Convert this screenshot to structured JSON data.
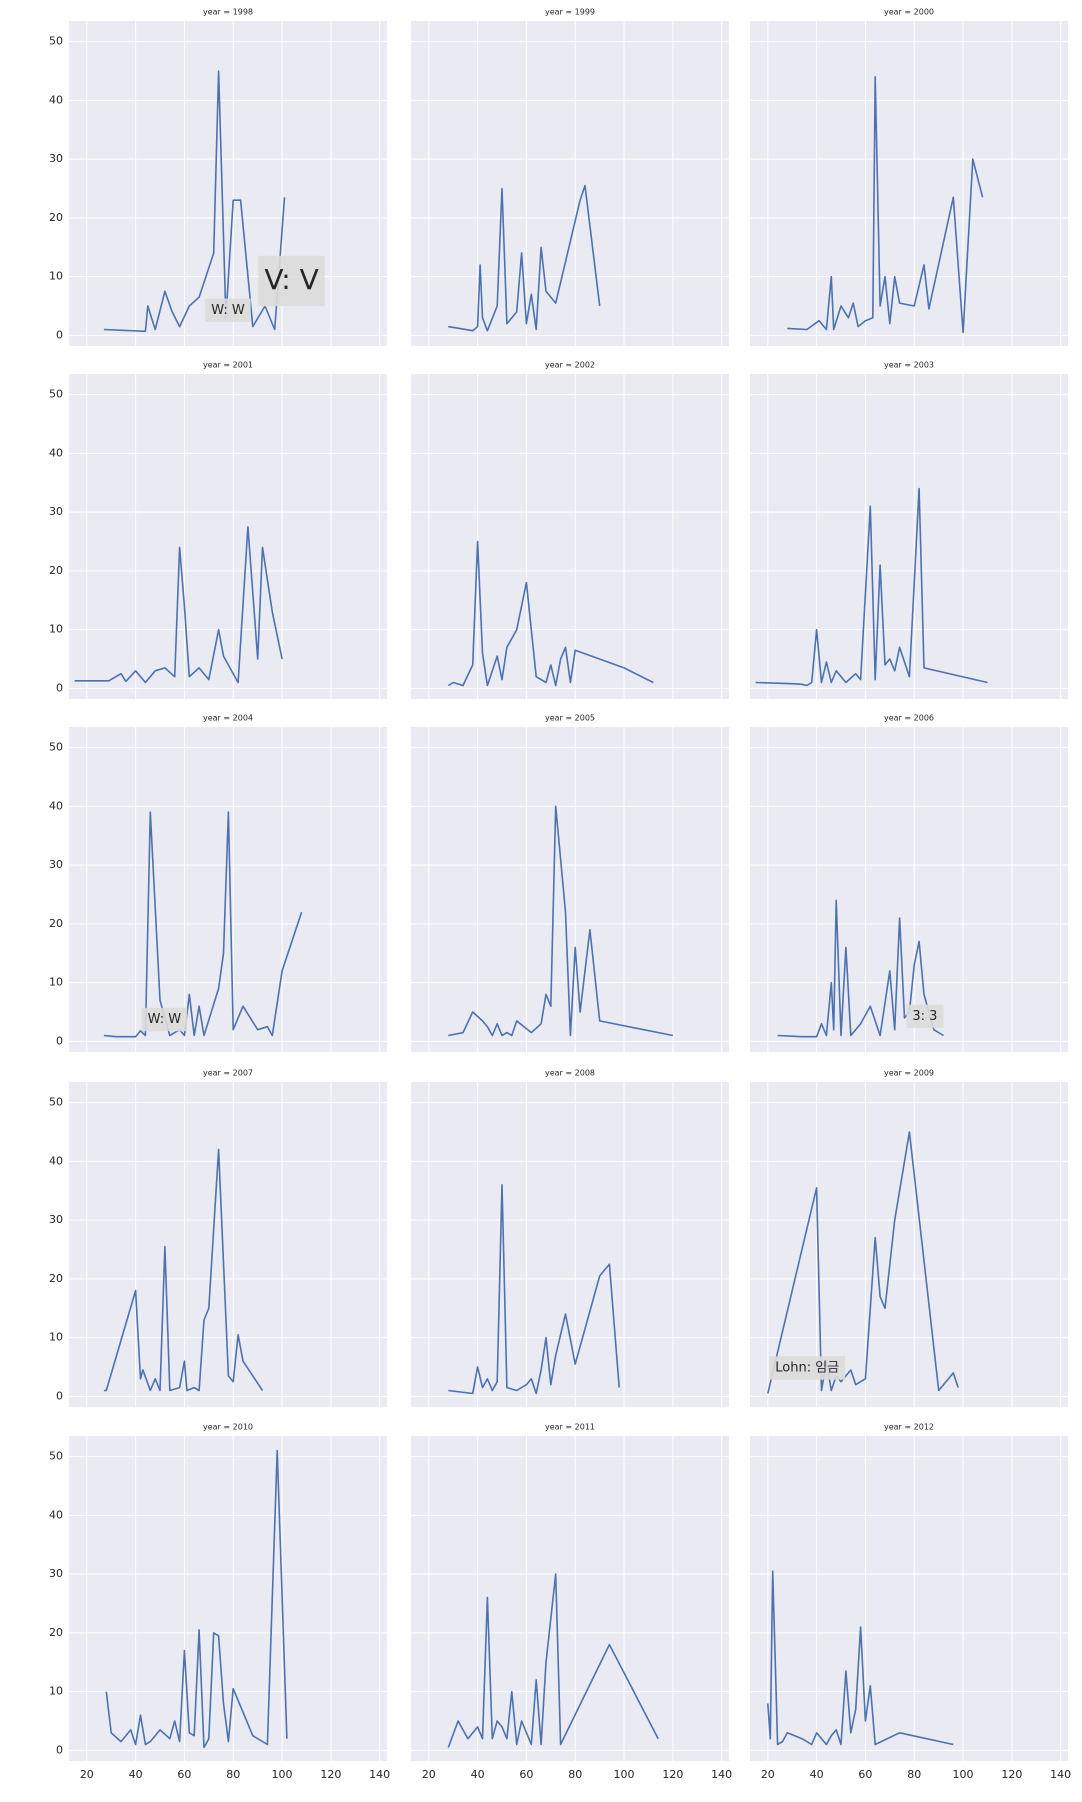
{
  "shared_axes": {
    "xlim": [
      12.7,
      143
    ],
    "xticks": [
      20,
      40,
      60,
      80,
      100,
      120,
      140
    ],
    "ylim": [
      -1.8,
      53.5
    ],
    "yticks": [
      0,
      10,
      20,
      30,
      40,
      50
    ],
    "color": "#4c72b0",
    "grid": true
  },
  "chart_data": [
    {
      "type": "line",
      "title": "year = 1998",
      "x": [
        27,
        44,
        45,
        48,
        52,
        55,
        58,
        62,
        66,
        72,
        74,
        77,
        80,
        83,
        88,
        93,
        97,
        101
      ],
      "values": [
        1,
        0.7,
        5,
        1,
        7.5,
        4,
        1.5,
        5,
        6.5,
        14,
        45,
        3,
        23,
        23,
        1.5,
        5,
        1,
        23.5
      ],
      "annotations": [
        "W: W",
        "V: V"
      ]
    },
    {
      "type": "line",
      "title": "year = 1999",
      "x": [
        28,
        38,
        40,
        41,
        42,
        44,
        48,
        50,
        52,
        56,
        58,
        60,
        62,
        64,
        66,
        68,
        72,
        82,
        84,
        90
      ],
      "values": [
        1.5,
        0.8,
        1.5,
        12,
        3,
        0.8,
        5,
        25,
        2,
        4,
        14,
        2,
        7,
        1,
        15,
        7.5,
        5.5,
        23,
        25.5,
        5
      ]
    },
    {
      "type": "line",
      "title": "year = 2000",
      "x": [
        28,
        36,
        41,
        44,
        46,
        47,
        50,
        53,
        55,
        57,
        60,
        63,
        64,
        66,
        68,
        70,
        72,
        74,
        80,
        84,
        86,
        96,
        100,
        104,
        108
      ],
      "values": [
        1.2,
        1,
        2.5,
        1,
        10,
        1,
        5,
        3,
        5.5,
        1.5,
        2.5,
        3,
        44,
        5,
        10,
        2,
        10,
        5.5,
        5,
        12,
        4.5,
        23.5,
        0.5,
        30,
        23.5
      ]
    },
    {
      "type": "line",
      "title": "year = 2001",
      "x": [
        15,
        29,
        34,
        36,
        40,
        44,
        48,
        52,
        56,
        58,
        60,
        62,
        66,
        70,
        74,
        76,
        82,
        86,
        90,
        92,
        96,
        100
      ],
      "values": [
        1.3,
        1.3,
        2.5,
        1.2,
        3,
        1,
        3,
        3.5,
        2,
        24,
        14,
        2,
        3.5,
        1.5,
        10,
        5.5,
        1,
        27.5,
        5,
        24,
        13,
        5
      ]
    },
    {
      "type": "line",
      "title": "year = 2002",
      "x": [
        28,
        30,
        34,
        38,
        40,
        42,
        44,
        48,
        50,
        52,
        56,
        60,
        64,
        68,
        70,
        72,
        74,
        76,
        78,
        80,
        100,
        112
      ],
      "values": [
        0.5,
        1,
        0.5,
        4,
        25,
        6,
        0.5,
        5.5,
        1.5,
        7,
        10,
        18,
        2,
        1,
        4,
        0.5,
        5,
        7,
        1,
        6.5,
        3.5,
        1
      ]
    },
    {
      "type": "line",
      "title": "year = 2003",
      "x": [
        15,
        30,
        34,
        36,
        38,
        40,
        42,
        44,
        46,
        48,
        52,
        56,
        58,
        62,
        64,
        66,
        68,
        70,
        72,
        74,
        78,
        82,
        84,
        110
      ],
      "values": [
        1,
        0.8,
        0.7,
        0.5,
        1,
        10,
        1,
        4.5,
        1,
        3,
        1,
        2.5,
        1.5,
        31,
        1.5,
        21,
        4,
        5,
        3,
        7,
        2,
        34,
        3.5,
        1
      ]
    },
    {
      "type": "line",
      "title": "year = 2004",
      "x": [
        27,
        32,
        40,
        42,
        44,
        46,
        50,
        52,
        54,
        58,
        60,
        62,
        64,
        66,
        68,
        74,
        76,
        78,
        80,
        84,
        90,
        94,
        96,
        100,
        108
      ],
      "values": [
        1,
        0.8,
        0.8,
        1.8,
        1,
        39,
        7,
        4,
        1,
        2,
        1,
        8,
        1,
        6,
        1,
        9,
        15,
        39,
        2,
        6,
        2,
        2.5,
        1,
        12,
        22
      ],
      "annotations": [
        "W: W"
      ]
    },
    {
      "type": "line",
      "title": "year = 2005",
      "x": [
        28,
        34,
        38,
        42,
        44,
        46,
        48,
        50,
        52,
        54,
        56,
        62,
        66,
        68,
        70,
        72,
        76,
        78,
        80,
        82,
        86,
        90,
        120
      ],
      "values": [
        1,
        1.5,
        5,
        3.5,
        2.5,
        1,
        3,
        1,
        1.5,
        1,
        3.5,
        1.5,
        3,
        8,
        6,
        40,
        22,
        1,
        16,
        5,
        19,
        3.5,
        1
      ]
    },
    {
      "type": "line",
      "title": "year = 2006",
      "x": [
        24,
        34,
        40,
        42,
        44,
        46,
        47,
        48,
        50,
        52,
        54,
        58,
        62,
        66,
        70,
        72,
        74,
        76,
        78,
        80,
        82,
        84,
        88,
        92
      ],
      "values": [
        1,
        0.8,
        0.8,
        3,
        1,
        10,
        2,
        24,
        1,
        16,
        1,
        3,
        6,
        1,
        12,
        2,
        21,
        4,
        5,
        13,
        17,
        8,
        2,
        1
      ],
      "annotations": [
        "3: 3"
      ]
    },
    {
      "type": "line",
      "title": "year = 2007",
      "x": [
        27,
        28,
        40,
        42,
        43,
        46,
        48,
        50,
        52,
        54,
        58,
        60,
        61,
        64,
        66,
        68,
        70,
        74,
        78,
        80,
        82,
        84,
        92
      ],
      "values": [
        1,
        1,
        18,
        3,
        4.5,
        1,
        3,
        1,
        25.5,
        1,
        1.5,
        6,
        1,
        1.5,
        1,
        13,
        15,
        42,
        3.5,
        2.5,
        10.5,
        6,
        1
      ]
    },
    {
      "type": "line",
      "title": "year = 2008",
      "x": [
        28,
        38,
        40,
        42,
        44,
        46,
        48,
        50,
        52,
        56,
        60,
        62,
        64,
        66,
        68,
        70,
        72,
        76,
        80,
        90,
        94,
        98
      ],
      "values": [
        1,
        0.5,
        5,
        1.5,
        3,
        1,
        2.5,
        36,
        1.5,
        1,
        2,
        3,
        0.5,
        4.5,
        10,
        2,
        7,
        14,
        5.5,
        20.5,
        22.5,
        1.5
      ]
    },
    {
      "type": "line",
      "title": "year = 2009",
      "x": [
        20,
        40,
        42,
        44,
        46,
        48,
        50,
        54,
        56,
        60,
        64,
        66,
        68,
        72,
        78,
        90,
        96,
        98
      ],
      "values": [
        0.5,
        35.5,
        1,
        6,
        1,
        3.5,
        2.5,
        4.5,
        2,
        3,
        27,
        17,
        15,
        30,
        45,
        1,
        4,
        1.5
      ],
      "annotations": [
        "Lohn: 임금"
      ]
    },
    {
      "type": "line",
      "title": "year = 2010",
      "x": [
        28,
        30,
        34,
        38,
        40,
        42,
        44,
        46,
        50,
        54,
        56,
        58,
        60,
        62,
        64,
        66,
        68,
        70,
        72,
        74,
        76,
        78,
        80,
        88,
        94,
        98,
        102
      ],
      "values": [
        10,
        3,
        1.5,
        3.5,
        1,
        6,
        1,
        1.5,
        3.5,
        2,
        5,
        1.5,
        17,
        3,
        2.5,
        20.5,
        0.5,
        2,
        20,
        19.5,
        8,
        1.5,
        10.5,
        2.5,
        1,
        51,
        2
      ]
    },
    {
      "type": "line",
      "title": "year = 2011",
      "x": [
        28,
        32,
        36,
        40,
        42,
        44,
        46,
        48,
        50,
        52,
        54,
        56,
        58,
        62,
        64,
        66,
        68,
        72,
        74,
        94,
        114
      ],
      "values": [
        0.5,
        5,
        2,
        4,
        2,
        26,
        2,
        5,
        4,
        2,
        10,
        1,
        5,
        1,
        12,
        1,
        15,
        30,
        1,
        18,
        2
      ]
    },
    {
      "type": "line",
      "title": "year = 2012",
      "x": [
        20,
        21,
        22,
        24,
        26,
        28,
        34,
        38,
        40,
        44,
        46,
        48,
        50,
        52,
        54,
        56,
        58,
        60,
        62,
        64,
        74,
        96
      ],
      "values": [
        8,
        2,
        30.5,
        1,
        1.5,
        3,
        2,
        1,
        3,
        1,
        2.5,
        3.5,
        1,
        13.5,
        3,
        7,
        21,
        5,
        11,
        1,
        3,
        1
      ]
    }
  ]
}
